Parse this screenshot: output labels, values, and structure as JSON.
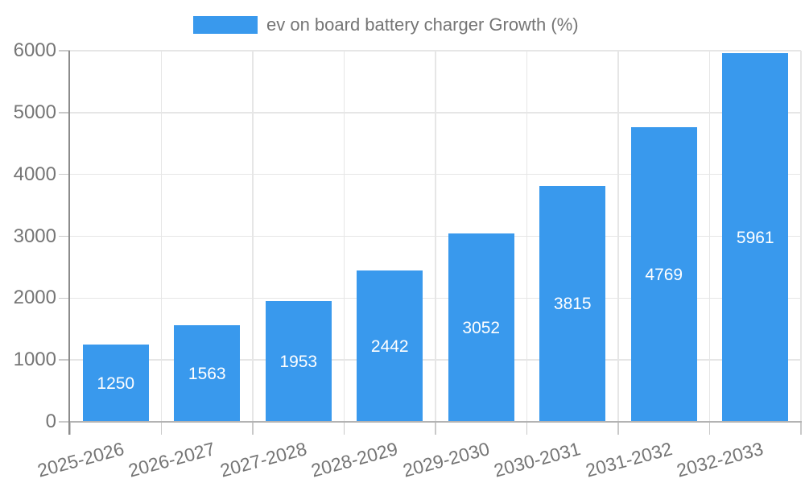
{
  "chart_data": {
    "type": "bar",
    "title": "ev on board battery charger Growth (%)",
    "categories": [
      "2025-2026",
      "2026-2027",
      "2027-2028",
      "2028-2029",
      "2029-2030",
      "2030-2031",
      "2031-2032",
      "2032-2033"
    ],
    "values": [
      1250,
      1563,
      1953,
      2442,
      3052,
      3815,
      4769,
      5961
    ],
    "xlabel": "",
    "ylabel": "",
    "ylim": [
      0,
      6000
    ],
    "y_ticks": [
      0,
      1000,
      2000,
      3000,
      4000,
      5000,
      6000
    ],
    "grid": true,
    "legend_position": "top",
    "bar_color": "#3999ed",
    "value_label_color": "#ffffff",
    "colors": {
      "grid_line": "#e6e6e6",
      "tick_mark": "#c9c9c9",
      "y_axis_line": "#8c8c8c",
      "x_axis_line": "#b3b3b3",
      "tick_label": "#757575"
    }
  }
}
